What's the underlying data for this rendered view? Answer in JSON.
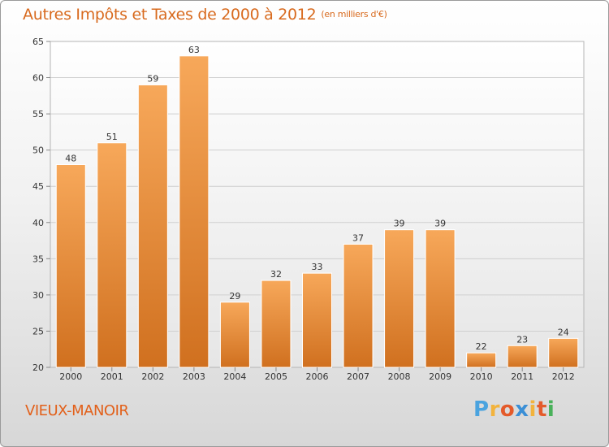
{
  "chart_data": {
    "type": "bar",
    "title": "Autres Impôts et Taxes de 2000 à 2012",
    "subtitle": "(en milliers d'€)",
    "categories": [
      "2000",
      "2001",
      "2002",
      "2003",
      "2004",
      "2005",
      "2006",
      "2007",
      "2008",
      "2009",
      "2010",
      "2011",
      "2012"
    ],
    "values": [
      48,
      51,
      59,
      63,
      29,
      32,
      33,
      37,
      39,
      39,
      22,
      23,
      24
    ],
    "ylim": [
      20,
      65
    ],
    "yticks": [
      20,
      25,
      30,
      35,
      40,
      45,
      50,
      55,
      60,
      65
    ],
    "grid": true,
    "bar_color_top": "#f7a85a",
    "bar_color_bottom": "#d0701f",
    "xlabel": "",
    "ylabel": ""
  },
  "commune": "VIEUX-MANOIR",
  "brand": {
    "letters": [
      "P",
      "r",
      "o",
      "x",
      "i",
      "t",
      "i"
    ],
    "colors": [
      "#4aa3df",
      "#f2b33d",
      "#e45a2a",
      "#3b8fd6",
      "#f2b33d",
      "#e45a2a",
      "#49b15a"
    ]
  }
}
